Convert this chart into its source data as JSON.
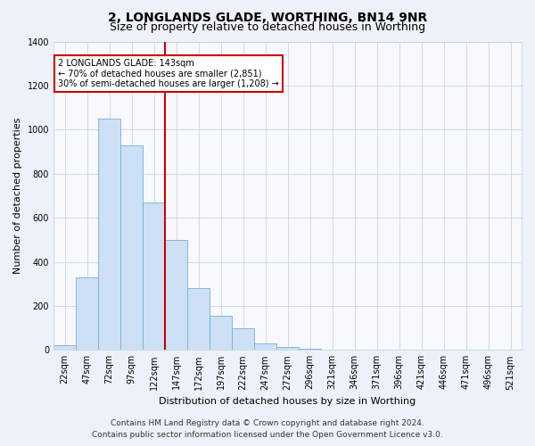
{
  "title": "2, LONGLANDS GLADE, WORTHING, BN14 9NR",
  "subtitle": "Size of property relative to detached houses in Worthing",
  "xlabel": "Distribution of detached houses by size in Worthing",
  "ylabel": "Number of detached properties",
  "categories": [
    "22sqm",
    "47sqm",
    "72sqm",
    "97sqm",
    "122sqm",
    "147sqm",
    "172sqm",
    "197sqm",
    "222sqm",
    "247sqm",
    "272sqm",
    "296sqm",
    "321sqm",
    "346sqm",
    "371sqm",
    "396sqm",
    "421sqm",
    "446sqm",
    "471sqm",
    "496sqm",
    "521sqm"
  ],
  "values": [
    20,
    330,
    1050,
    930,
    670,
    500,
    280,
    155,
    100,
    30,
    15,
    5,
    3,
    2,
    1,
    1,
    1,
    1,
    1,
    1,
    1
  ],
  "bar_color": "#cde0f5",
  "bar_edge_color": "#7aafd4",
  "vline_color": "#cc0000",
  "vline_x_idx": 4.5,
  "annotation_text": "2 LONGLANDS GLADE: 143sqm\n← 70% of detached houses are smaller (2,851)\n30% of semi-detached houses are larger (1,208) →",
  "annotation_box_facecolor": "#ffffff",
  "annotation_box_edgecolor": "#cc0000",
  "ylim": [
    0,
    1400
  ],
  "yticks": [
    0,
    200,
    400,
    600,
    800,
    1000,
    1200,
    1400
  ],
  "footer_line1": "Contains HM Land Registry data © Crown copyright and database right 2024.",
  "footer_line2": "Contains public sector information licensed under the Open Government Licence v3.0.",
  "background_color": "#edf2fa",
  "plot_background_color": "#f7f9fd",
  "grid_color": "#c8d4e8",
  "title_fontsize": 10,
  "subtitle_fontsize": 9,
  "axis_label_fontsize": 8,
  "tick_fontsize": 7,
  "annotation_fontsize": 7,
  "footer_fontsize": 6.5
}
